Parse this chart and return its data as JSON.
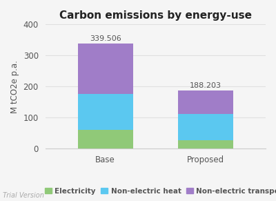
{
  "title": "Carbon emissions by energy-use",
  "ylabel": "M tCO2e p.a.",
  "categories": [
    "Base",
    "Proposed"
  ],
  "electricity": [
    60.0,
    28.0
  ],
  "non_electric_heat": [
    116.0,
    83.0
  ],
  "non_electric_transport": [
    163.506,
    77.203
  ],
  "totals": [
    339.506,
    188.203
  ],
  "color_electricity": "#90c978",
  "color_heat": "#5bc8f0",
  "color_transport": "#a07dc8",
  "ylim": [
    0,
    400
  ],
  "yticks": [
    0,
    100,
    200,
    300,
    400
  ],
  "bar_width": 0.55,
  "legend_labels": [
    "Electricity",
    "Non-electric heat",
    "Non-electric transport"
  ],
  "trial_text": "Trial Version",
  "background_color": "#f5f5f5",
  "title_fontsize": 11,
  "label_fontsize": 8.5,
  "tick_fontsize": 8.5,
  "legend_fontsize": 7.5,
  "annot_fontsize": 8,
  "grid_color": "#e0e0e0",
  "spine_color": "#cccccc",
  "text_color": "#555555",
  "title_color": "#222222"
}
